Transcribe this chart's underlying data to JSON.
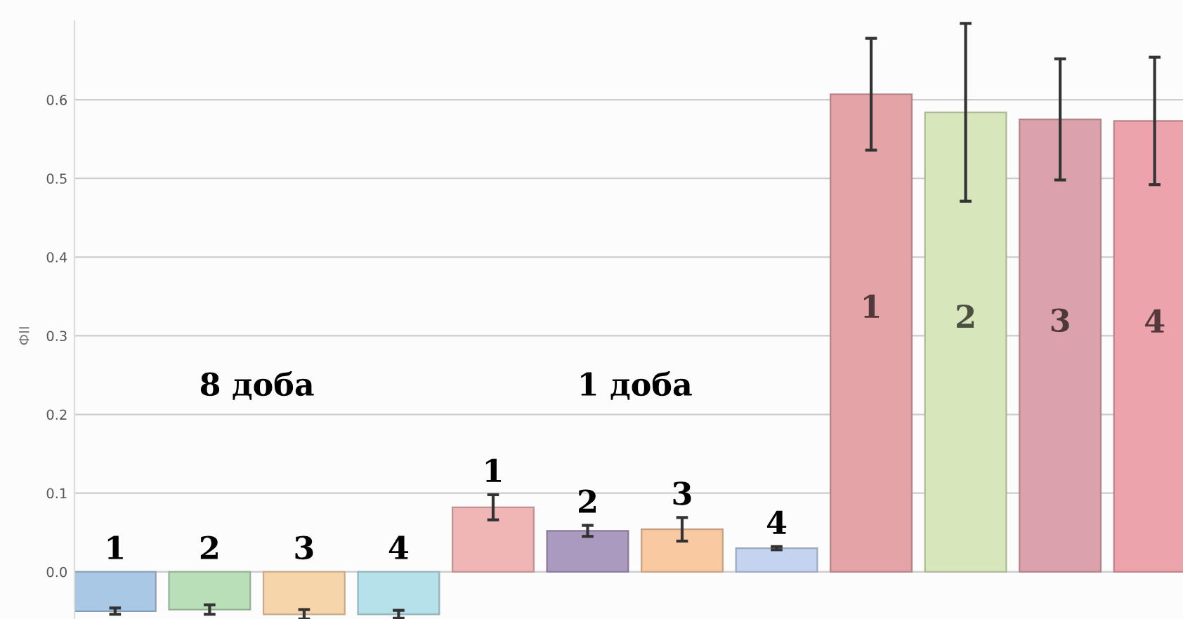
{
  "chart_data": {
    "type": "bar",
    "ylabel": "ФІІ",
    "categories": [
      null,
      null,
      null,
      null,
      null,
      null,
      null,
      null,
      null,
      null,
      null,
      null
    ],
    "values": [
      -0.05,
      -0.048,
      -0.054,
      -0.054,
      0.082,
      0.052,
      0.054,
      0.03,
      0.607,
      0.584,
      0.575,
      0.573
    ],
    "errors": [
      0.004,
      0.006,
      0.006,
      0.005,
      0.016,
      0.007,
      0.015,
      0.002,
      0.071,
      0.113,
      0.077,
      0.081
    ],
    "colors": [
      "#a9c8e6",
      "#b8dfb8",
      "#f7d5ab",
      "#b6e0ea",
      "#f0b5b5",
      "#aa9ac0",
      "#f9c9a2",
      "#c3d3f0",
      "#e3a3a7",
      "#d8e6bb",
      "#dca2ab",
      "#eda3ab"
    ],
    "annotations": [
      "8 доба",
      "1 доба",
      "1",
      "2",
      "3",
      "4",
      "1",
      "2",
      "3",
      "4",
      "1",
      "2",
      "3",
      "4"
    ],
    "ylim": [
      -0.06,
      0.7
    ],
    "yticks": [
      {
        "value": 0.0,
        "label": "0.0"
      },
      0.1,
      0.2,
      0.3,
      0.4,
      0.5,
      0.6
    ],
    "grid": "y",
    "tick_labels": "y"
  }
}
